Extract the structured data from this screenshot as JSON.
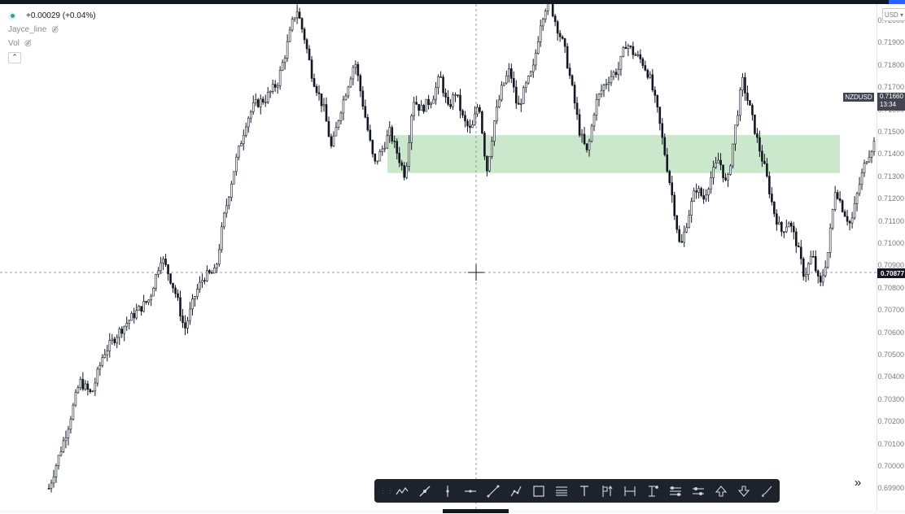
{
  "symbol": "NZDUSD",
  "legend": {
    "change": "+0.00029 (+0.04%)",
    "indicator_1": "Jayce_line",
    "indicator_2": "Vol"
  },
  "price_axis": {
    "currency": "USD",
    "ticks": [
      "0.72000",
      "0.71900",
      "0.71800",
      "0.71700",
      "0.71600",
      "0.71500",
      "0.71400",
      "0.71300",
      "0.71200",
      "0.71100",
      "0.71000",
      "0.70900",
      "0.70800",
      "0.70700",
      "0.70600",
      "0.70500",
      "0.70400",
      "0.70300",
      "0.70200",
      "0.70100",
      "0.70000",
      "0.69900"
    ]
  },
  "last_price": {
    "value": "0.71660",
    "countdown": "13:34"
  },
  "crosshair_price": "0.70877",
  "zone": {
    "top": 0.71485,
    "bottom": 0.71315,
    "color": "#c8e6c9"
  },
  "colors": {
    "candles": "#131722",
    "toolbar": "#1e222d",
    "accent": "#2962ff"
  },
  "toolbar": {
    "tools": [
      "zigzag-icon",
      "pen-icon",
      "vertical-line-icon",
      "horizontal-ray-icon",
      "trend-line-icon",
      "path-icon",
      "rectangle-icon",
      "fib-retracement-icon",
      "text-icon",
      "long-position-icon",
      "date-range-icon",
      "price-range-icon",
      "parallel-channel-icon",
      "regression-icon",
      "arrow-up-icon",
      "arrow-down-icon",
      "brush-icon"
    ]
  },
  "chart_data": {
    "type": "candlestick",
    "title": "",
    "ylim": [
      0.6988,
      0.7221
    ],
    "close_points": [
      [
        0,
        0.699
      ],
      [
        5,
        0.7018
      ],
      [
        8,
        0.7038
      ],
      [
        11,
        0.7032
      ],
      [
        14,
        0.705
      ],
      [
        18,
        0.706
      ],
      [
        22,
        0.7068
      ],
      [
        26,
        0.7075
      ],
      [
        29,
        0.7094
      ],
      [
        31,
        0.7086
      ],
      [
        33,
        0.7076
      ],
      [
        35,
        0.7061
      ],
      [
        38,
        0.7078
      ],
      [
        40,
        0.7085
      ],
      [
        43,
        0.7087
      ],
      [
        45,
        0.711
      ],
      [
        48,
        0.7135
      ],
      [
        51,
        0.7155
      ],
      [
        53,
        0.7162
      ],
      [
        56,
        0.7165
      ],
      [
        59,
        0.7172
      ],
      [
        61,
        0.7185
      ],
      [
        63,
        0.72
      ],
      [
        64,
        0.7205
      ],
      [
        66,
        0.7192
      ],
      [
        68,
        0.7175
      ],
      [
        71,
        0.716
      ],
      [
        73,
        0.7142
      ],
      [
        75,
        0.7158
      ],
      [
        77,
        0.717
      ],
      [
        79,
        0.7182
      ],
      [
        81,
        0.7163
      ],
      [
        84,
        0.7135
      ],
      [
        86,
        0.7142
      ],
      [
        88,
        0.715
      ],
      [
        90,
        0.714
      ],
      [
        92,
        0.713
      ],
      [
        94,
        0.7165
      ],
      [
        96,
        0.716
      ],
      [
        99,
        0.7165
      ],
      [
        101,
        0.7175
      ],
      [
        103,
        0.716
      ],
      [
        105,
        0.7168
      ],
      [
        107,
        0.7155
      ],
      [
        109,
        0.715
      ],
      [
        111,
        0.7164
      ],
      [
        113,
        0.7132
      ],
      [
        115,
        0.7155
      ],
      [
        117,
        0.717
      ],
      [
        119,
        0.7178
      ],
      [
        121,
        0.716
      ],
      [
        123,
        0.717
      ],
      [
        125,
        0.7178
      ],
      [
        127,
        0.72
      ],
      [
        129,
        0.721
      ],
      [
        131,
        0.7198
      ],
      [
        133,
        0.7188
      ],
      [
        135,
        0.717
      ],
      [
        137,
        0.715
      ],
      [
        139,
        0.714
      ],
      [
        141,
        0.7162
      ],
      [
        143,
        0.717
      ],
      [
        145,
        0.7175
      ],
      [
        147,
        0.7178
      ],
      [
        149,
        0.719
      ],
      [
        151,
        0.7185
      ],
      [
        153,
        0.7182
      ],
      [
        155,
        0.7175
      ],
      [
        157,
        0.716
      ],
      [
        159,
        0.714
      ],
      [
        161,
        0.712
      ],
      [
        163,
        0.7097
      ],
      [
        165,
        0.7112
      ],
      [
        167,
        0.7125
      ],
      [
        169,
        0.712
      ],
      [
        171,
        0.713
      ],
      [
        173,
        0.7138
      ],
      [
        175,
        0.7125
      ],
      [
        177,
        0.715
      ],
      [
        179,
        0.7173
      ],
      [
        181,
        0.716
      ],
      [
        183,
        0.7145
      ],
      [
        185,
        0.7132
      ],
      [
        187,
        0.7115
      ],
      [
        189,
        0.7105
      ],
      [
        191,
        0.711
      ],
      [
        193,
        0.71
      ],
      [
        195,
        0.7085
      ],
      [
        197,
        0.7095
      ],
      [
        199,
        0.708
      ],
      [
        201,
        0.7095
      ],
      [
        203,
        0.7125
      ],
      [
        205,
        0.7115
      ],
      [
        207,
        0.7108
      ],
      [
        209,
        0.7125
      ],
      [
        211,
        0.7138
      ],
      [
        213,
        0.7145
      ]
    ]
  }
}
